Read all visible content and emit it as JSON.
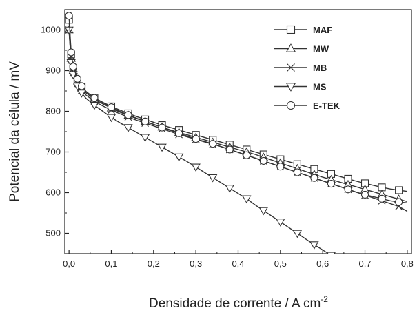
{
  "chart_data": {
    "type": "line",
    "title": "",
    "xlabel": "Densidade de corrente / A cm",
    "xlabel_superscript": "-2",
    "ylabel": "Potencial da célula / mV",
    "xlim": [
      -0.01,
      0.81
    ],
    "ylim": [
      450,
      1050
    ],
    "x_ticks": [
      0.0,
      0.1,
      0.2,
      0.3,
      0.4,
      0.5,
      0.6,
      0.7,
      0.8
    ],
    "x_tick_labels": [
      "0,0",
      "0,1",
      "0,2",
      "0,3",
      "0,4",
      "0,5",
      "0,6",
      "0,7",
      "0,8"
    ],
    "y_ticks": [
      500,
      600,
      700,
      800,
      900,
      1000
    ],
    "y_tick_labels": [
      "500",
      "600",
      "700",
      "800",
      "900",
      "1000"
    ],
    "grid": false,
    "legend_position": "top-right",
    "series": [
      {
        "name": "MAF",
        "marker": "square",
        "x": [
          0.0,
          0.005,
          0.01,
          0.02,
          0.03,
          0.04,
          0.06,
          0.08,
          0.1,
          0.12,
          0.14,
          0.16,
          0.18,
          0.2,
          0.22,
          0.24,
          0.26,
          0.28,
          0.3,
          0.32,
          0.34,
          0.36,
          0.38,
          0.4,
          0.42,
          0.44,
          0.46,
          0.48,
          0.5,
          0.52,
          0.54,
          0.56,
          0.58,
          0.6,
          0.62,
          0.64,
          0.66,
          0.68,
          0.7,
          0.72,
          0.74,
          0.76,
          0.78,
          0.8
        ],
        "y": [
          1025,
          940,
          905,
          875,
          860,
          848,
          833,
          822,
          812,
          803,
          795,
          787,
          780,
          773,
          766,
          760,
          754,
          748,
          742,
          736,
          730,
          724,
          718,
          712,
          706,
          700,
          694,
          688,
          682,
          676,
          670,
          664,
          658,
          652,
          646,
          640,
          634,
          628,
          623,
          618,
          613,
          609,
          606,
          603
        ]
      },
      {
        "name": "MW",
        "marker": "triangle-up",
        "x": [
          0.0,
          0.005,
          0.01,
          0.02,
          0.03,
          0.04,
          0.06,
          0.08,
          0.1,
          0.12,
          0.14,
          0.16,
          0.18,
          0.2,
          0.22,
          0.24,
          0.26,
          0.28,
          0.3,
          0.32,
          0.34,
          0.36,
          0.38,
          0.4,
          0.42,
          0.44,
          0.46,
          0.48,
          0.5,
          0.52,
          0.54,
          0.56,
          0.58,
          0.6,
          0.62,
          0.64,
          0.66,
          0.68,
          0.7,
          0.72,
          0.74,
          0.76,
          0.78,
          0.8
        ],
        "y": [
          1000,
          930,
          900,
          872,
          857,
          845,
          830,
          818,
          808,
          798,
          790,
          782,
          775,
          768,
          761,
          754,
          748,
          742,
          736,
          730,
          724,
          718,
          712,
          706,
          700,
          694,
          687,
          680,
          673,
          666,
          659,
          652,
          645,
          638,
          632,
          626,
          620,
          614,
          608,
          602,
          596,
          590,
          584,
          578
        ]
      },
      {
        "name": "MB",
        "marker": "x",
        "x": [
          0.0,
          0.005,
          0.01,
          0.02,
          0.03,
          0.04,
          0.06,
          0.08,
          0.1,
          0.12,
          0.14,
          0.16,
          0.18,
          0.2,
          0.22,
          0.24,
          0.26,
          0.28,
          0.3,
          0.32,
          0.34,
          0.36,
          0.38,
          0.4,
          0.42,
          0.44,
          0.46,
          0.48,
          0.5,
          0.52,
          0.54,
          0.56,
          0.58,
          0.6,
          0.62,
          0.64,
          0.66,
          0.68,
          0.7,
          0.72,
          0.74,
          0.76,
          0.78,
          0.8
        ],
        "y": [
          1000,
          925,
          895,
          868,
          852,
          840,
          825,
          813,
          803,
          794,
          786,
          778,
          771,
          764,
          757,
          750,
          743,
          737,
          731,
          725,
          719,
          713,
          706,
          699,
          692,
          685,
          678,
          671,
          664,
          657,
          650,
          643,
          636,
          629,
          622,
          615,
          608,
          601,
          594,
          587,
          580,
          573,
          566,
          554
        ]
      },
      {
        "name": "MS",
        "marker": "triangle-down",
        "x": [
          0.0,
          0.005,
          0.01,
          0.02,
          0.03,
          0.04,
          0.06,
          0.08,
          0.1,
          0.12,
          0.14,
          0.16,
          0.18,
          0.2,
          0.22,
          0.24,
          0.26,
          0.28,
          0.3,
          0.32,
          0.34,
          0.36,
          0.38,
          0.4,
          0.42,
          0.44,
          0.46,
          0.48,
          0.5,
          0.52,
          0.54,
          0.56,
          0.58,
          0.6,
          0.62,
          0.64,
          0.66
        ],
        "y": [
          1000,
          920,
          890,
          862,
          845,
          832,
          815,
          800,
          785,
          772,
          760,
          748,
          736,
          724,
          712,
          700,
          688,
          676,
          663,
          650,
          637,
          624,
          611,
          598,
          585,
          570,
          556,
          542,
          528,
          514,
          500,
          486,
          472,
          459,
          446,
          434,
          422
        ]
      },
      {
        "name": "E-TEK",
        "marker": "circle",
        "x": [
          0.0,
          0.005,
          0.01,
          0.02,
          0.03,
          0.04,
          0.06,
          0.08,
          0.1,
          0.12,
          0.14,
          0.16,
          0.18,
          0.2,
          0.22,
          0.24,
          0.26,
          0.28,
          0.3,
          0.32,
          0.34,
          0.36,
          0.38,
          0.4,
          0.42,
          0.44,
          0.46,
          0.48,
          0.5,
          0.52,
          0.54,
          0.56,
          0.58,
          0.6,
          0.62,
          0.64,
          0.66,
          0.68,
          0.7,
          0.72,
          0.74,
          0.76,
          0.78,
          0.8
        ],
        "y": [
          1035,
          945,
          910,
          880,
          862,
          849,
          833,
          821,
          810,
          800,
          791,
          783,
          775,
          768,
          760,
          753,
          746,
          739,
          732,
          726,
          720,
          713,
          706,
          699,
          692,
          685,
          678,
          671,
          664,
          657,
          650,
          643,
          636,
          629,
          622,
          615,
          608,
          601,
          595,
          590,
          585,
          580,
          577,
          575
        ]
      }
    ]
  }
}
